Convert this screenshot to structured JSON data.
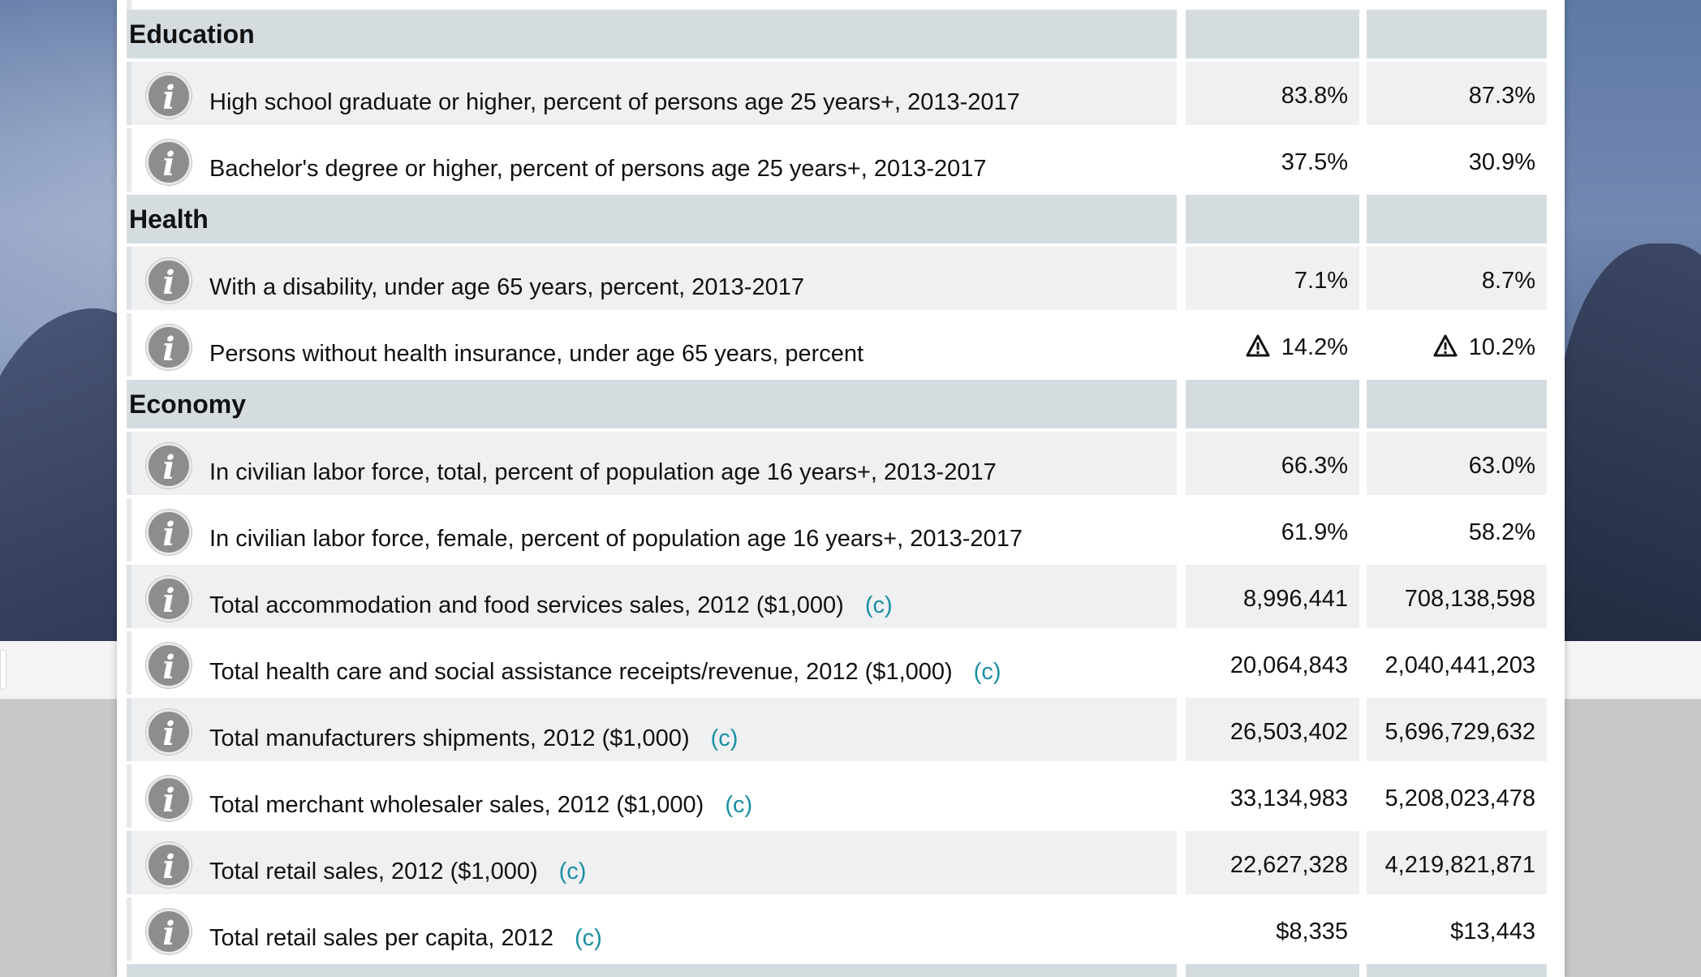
{
  "sections": [
    {
      "title": "Education",
      "rows": [
        {
          "label": "High school graduate or higher, percent of persons age 25 years+, 2013-2017",
          "source": "",
          "v1": "83.8%",
          "v2": "87.3%",
          "warn1": false,
          "warn2": false
        },
        {
          "label": "Bachelor's degree or higher, percent of persons age 25 years+, 2013-2017",
          "source": "",
          "v1": "37.5%",
          "v2": "30.9%",
          "warn1": false,
          "warn2": false
        }
      ]
    },
    {
      "title": "Health",
      "rows": [
        {
          "label": "With a disability, under age 65 years, percent, 2013-2017",
          "source": "",
          "v1": "7.1%",
          "v2": "8.7%",
          "warn1": false,
          "warn2": false
        },
        {
          "label": "Persons without health insurance, under age 65 years, percent",
          "source": "",
          "v1": "14.2%",
          "v2": "10.2%",
          "warn1": true,
          "warn2": true
        }
      ]
    },
    {
      "title": "Economy",
      "rows": [
        {
          "label": "In civilian labor force, total, percent of population age 16 years+, 2013-2017",
          "source": "",
          "v1": "66.3%",
          "v2": "63.0%",
          "warn1": false,
          "warn2": false
        },
        {
          "label": "In civilian labor force, female, percent of population age 16 years+, 2013-2017",
          "source": "",
          "v1": "61.9%",
          "v2": "58.2%",
          "warn1": false,
          "warn2": false
        },
        {
          "label": "Total accommodation and food services sales, 2012 ($1,000)",
          "source": "(c)",
          "v1": "8,996,441",
          "v2": "708,138,598",
          "warn1": false,
          "warn2": false
        },
        {
          "label": "Total health care and social assistance receipts/revenue, 2012 ($1,000)",
          "source": "(c)",
          "v1": "20,064,843",
          "v2": "2,040,441,203",
          "warn1": false,
          "warn2": false
        },
        {
          "label": "Total manufacturers shipments, 2012 ($1,000)",
          "source": "(c)",
          "v1": "26,503,402",
          "v2": "5,696,729,632",
          "warn1": false,
          "warn2": false
        },
        {
          "label": "Total merchant wholesaler sales, 2012 ($1,000)",
          "source": "(c)",
          "v1": "33,134,983",
          "v2": "5,208,023,478",
          "warn1": false,
          "warn2": false
        },
        {
          "label": "Total retail sales, 2012 ($1,000)",
          "source": "(c)",
          "v1": "22,627,328",
          "v2": "4,219,821,871",
          "warn1": false,
          "warn2": false
        },
        {
          "label": "Total retail sales per capita, 2012",
          "source": "(c)",
          "v1": "$8,335",
          "v2": "$13,443",
          "warn1": false,
          "warn2": false
        }
      ]
    }
  ],
  "icons": {
    "info": "info-icon",
    "warning": "warning-triangle-icon"
  },
  "info_glyph": "i",
  "colors": {
    "section_bg": "#d4dce0",
    "row_shaded": "#eff0f2",
    "link": "#1a8fa3",
    "info_icon": "#8d8d8d"
  }
}
